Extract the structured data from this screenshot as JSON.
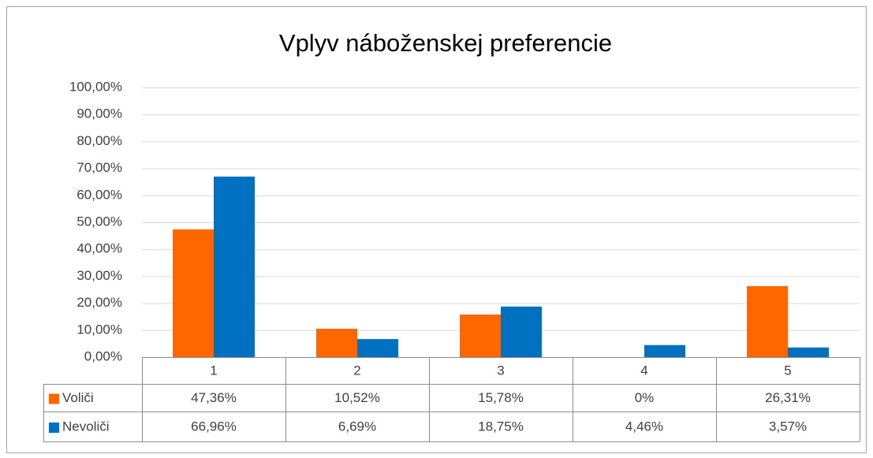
{
  "chart_data": {
    "type": "bar",
    "title": "Vplyv náboženskej preferencie",
    "categories": [
      "1",
      "2",
      "3",
      "4",
      "5"
    ],
    "series": [
      {
        "name": "Voliči",
        "color": "#ff6600",
        "values": [
          47.36,
          10.52,
          15.78,
          0,
          26.31
        ],
        "value_labels": [
          "47,36%",
          "10,52%",
          "15,78%",
          "0%",
          "26,31%"
        ]
      },
      {
        "name": "Nevoliči",
        "color": "#0070c0",
        "values": [
          66.96,
          6.69,
          18.75,
          4.46,
          3.57
        ],
        "value_labels": [
          "66,96%",
          "6,69%",
          "18,75%",
          "4,46%",
          "3,57%"
        ]
      }
    ],
    "ylim": [
      0,
      100
    ],
    "yticks": [
      {
        "value": 0,
        "label": "0,00%"
      },
      {
        "value": 10,
        "label": "10,00%"
      },
      {
        "value": 20,
        "label": "20,00%"
      },
      {
        "value": 30,
        "label": "30,00%"
      },
      {
        "value": 40,
        "label": "40,00%"
      },
      {
        "value": 50,
        "label": "50,00%"
      },
      {
        "value": 60,
        "label": "60,00%"
      },
      {
        "value": 70,
        "label": "70,00%"
      },
      {
        "value": 80,
        "label": "80,00%"
      },
      {
        "value": 90,
        "label": "90,00%"
      },
      {
        "value": 100,
        "label": "100,00%"
      }
    ],
    "grid": true
  }
}
